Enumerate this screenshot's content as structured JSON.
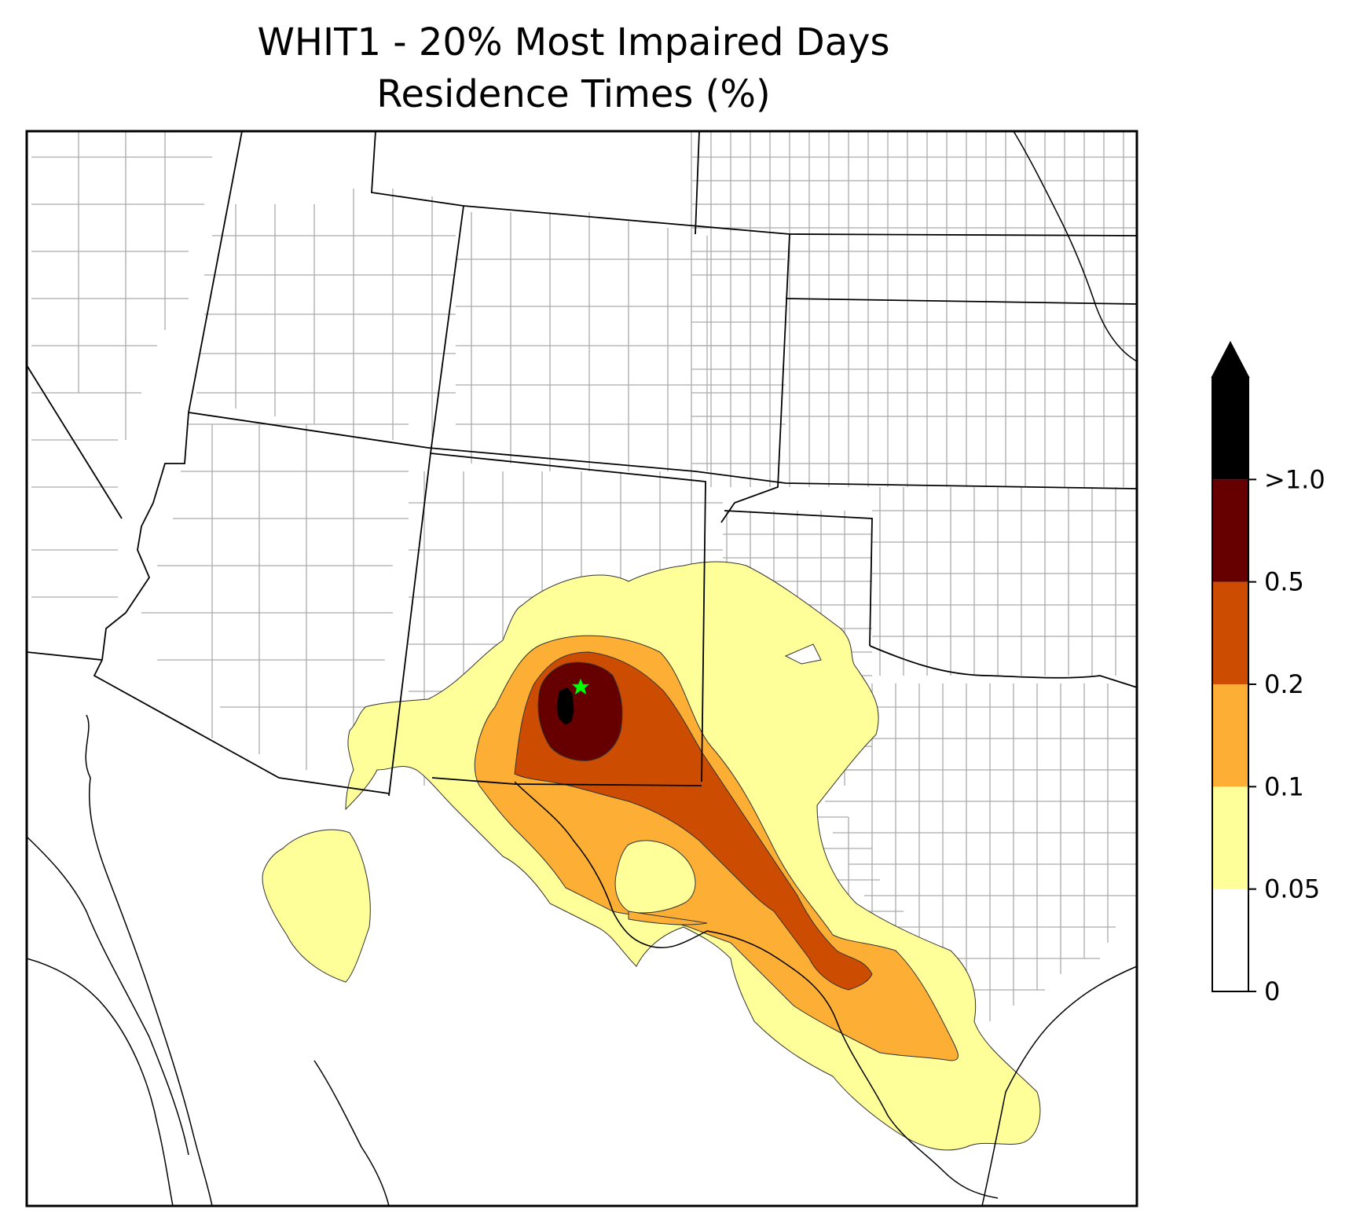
{
  "title": {
    "line1": "WHIT1 - 20% Most Impaired Days",
    "line2": "Residence Times (%)"
  },
  "colorbar": {
    "bins": [
      {
        "from": "0",
        "to": "0.05",
        "color": "#ffffff"
      },
      {
        "from": "0.05",
        "to": "0.1",
        "color": "#ffff99"
      },
      {
        "from": "0.1",
        "to": "0.2",
        "color": "#fcae35"
      },
      {
        "from": "0.2",
        "to": "0.5",
        "color": "#cc4c02"
      },
      {
        "from": "0.5",
        "to": "1.0",
        "color": "#660000"
      },
      {
        "from": "1.0",
        "to": "max",
        "color": "#000000"
      }
    ],
    "tick_labels": [
      "0",
      "0.05",
      "0.1",
      "0.2",
      "0.5",
      ">1.0"
    ],
    "extend": "max"
  },
  "site_marker": {
    "color": "#00ff00",
    "shape": "star"
  }
}
